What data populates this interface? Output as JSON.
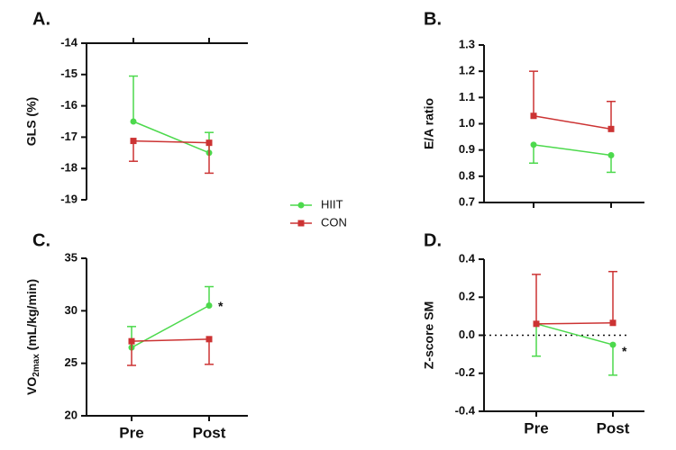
{
  "chart_data": [
    {
      "type": "line",
      "panel_label": "A.",
      "ylabel": "GLS (%)",
      "categories": [
        null,
        null
      ],
      "ylim": [
        -19,
        -14
      ],
      "yticks": [
        -14,
        -15,
        -16,
        -17,
        -18,
        -19
      ],
      "x_axis_position": "top",
      "legend": true,
      "series": [
        {
          "name": "HIIT",
          "color": "#4cd94c",
          "marker": "circle",
          "values": [
            -16.5,
            -17.5
          ],
          "errors": [
            1.45,
            0.65
          ],
          "error_direction": "up"
        },
        {
          "name": "CON",
          "color": "#cc3333",
          "marker": "square",
          "values": [
            -17.12,
            -17.18
          ],
          "errors": [
            0.65,
            0.97
          ],
          "error_direction": "down"
        }
      ]
    },
    {
      "type": "line",
      "panel_label": "B.",
      "ylabel": "E/A ratio",
      "categories": [
        null,
        null
      ],
      "ylim": [
        0.7,
        1.3
      ],
      "yticks": [
        0.7,
        0.8,
        0.9,
        {
          "value": 1,
          "label": "1.0"
        },
        1.1,
        1.2,
        1.3
      ],
      "x_axis_position": "bottom",
      "series": [
        {
          "name": "HIIT",
          "color": "#4cd94c",
          "marker": "circle",
          "values": [
            0.92,
            0.88
          ],
          "errors": [
            0.07,
            0.065
          ],
          "error_direction": "down"
        },
        {
          "name": "CON",
          "color": "#cc3333",
          "marker": "square",
          "values": [
            1.03,
            0.98
          ],
          "errors": [
            0.17,
            0.105
          ],
          "error_direction": "up"
        }
      ]
    },
    {
      "type": "line",
      "panel_label": "C.",
      "ylabel_parts": [
        "VO",
        "2max",
        " (mL/kg/min)"
      ],
      "categories": [
        "Pre",
        "Post"
      ],
      "ylim": [
        20,
        35
      ],
      "yticks": [
        20,
        25,
        30,
        35
      ],
      "x_axis_position": "bottom",
      "annotation": "*",
      "series": [
        {
          "name": "HIIT",
          "color": "#4cd94c",
          "marker": "circle",
          "values": [
            26.5,
            30.5
          ],
          "errors": [
            2.0,
            1.8
          ],
          "error_direction": "up"
        },
        {
          "name": "CON",
          "color": "#cc3333",
          "marker": "square",
          "values": [
            27.1,
            27.3
          ],
          "errors": [
            2.3,
            2.4
          ],
          "error_direction": "down"
        }
      ]
    },
    {
      "type": "line",
      "panel_label": "D.",
      "ylabel": "Z-score SM",
      "categories": [
        "Pre",
        "Post"
      ],
      "ylim": [
        -0.4,
        0.4
      ],
      "yticks": [
        -0.4,
        -0.2,
        {
          "value": 0,
          "label": "0.0"
        },
        0.2,
        0.4
      ],
      "x_axis_position": "bottom",
      "reference_line": 0,
      "annotation": "*",
      "series": [
        {
          "name": "HIIT",
          "color": "#4cd94c",
          "marker": "circle",
          "values": [
            0.06,
            -0.05
          ],
          "errors": [
            0.17,
            0.16
          ],
          "error_direction": "down"
        },
        {
          "name": "CON",
          "color": "#cc3333",
          "marker": "square",
          "values": [
            0.06,
            0.065
          ],
          "errors": [
            0.26,
            0.27
          ],
          "error_direction": "up"
        }
      ]
    }
  ]
}
